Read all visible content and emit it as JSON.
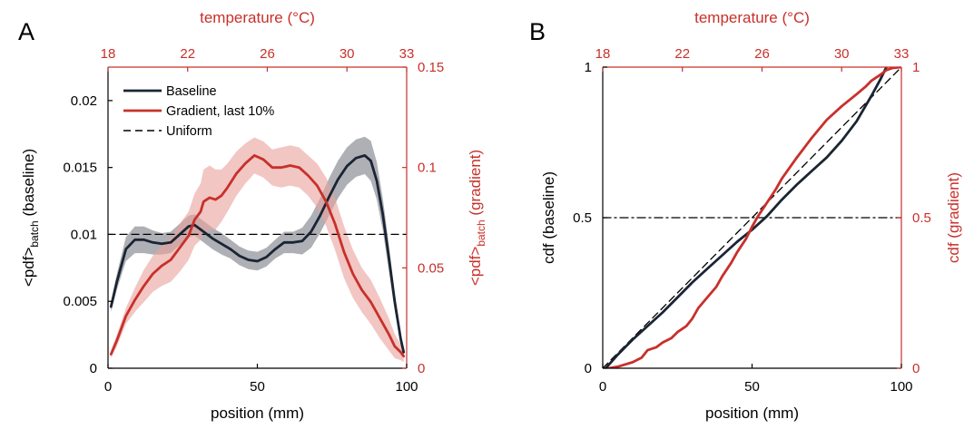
{
  "colors": {
    "baseline": "#1b2433",
    "gradient": "#c8302a",
    "baseline_band": "#8c8f95",
    "gradient_band": "#e8a39e",
    "axis_black": "#000000",
    "axis_red": "#c8302a"
  },
  "chart_data": [
    {
      "panel": "A",
      "type": "line",
      "xlabel": "position (mm)",
      "top_xlabel": "temperature (°C)",
      "ylabel_left": {
        "base": "<pdf>",
        "sub": "batch",
        "tail": " (baseline)"
      },
      "ylabel_right": {
        "base": "<pdf>",
        "sub": "batch",
        "tail": " (gradient)"
      },
      "xlim": [
        0,
        100
      ],
      "ylim_left": [
        0,
        0.0225
      ],
      "ylim_right": [
        0,
        0.15
      ],
      "x_ticks": [
        {
          "value": 0,
          "label": "0"
        },
        {
          "value": 50,
          "label": "50"
        },
        {
          "value": 100,
          "label": "100"
        }
      ],
      "top_ticks": [
        {
          "value": 18,
          "label": "18"
        },
        {
          "value": 22,
          "label": "22"
        },
        {
          "value": 26,
          "label": "26"
        },
        {
          "value": 30,
          "label": "30"
        },
        {
          "value": 33,
          "label": "33"
        }
      ],
      "top_range": [
        18,
        33
      ],
      "y_ticks_left": [
        {
          "value": 0,
          "label": "0"
        },
        {
          "value": 0.005,
          "label": "0.005"
        },
        {
          "value": 0.01,
          "label": "0.01"
        },
        {
          "value": 0.015,
          "label": "0.015"
        },
        {
          "value": 0.02,
          "label": "0.02"
        }
      ],
      "y_ticks_right": [
        {
          "value": 0,
          "label": "0"
        },
        {
          "value": 0.05,
          "label": "0.05"
        },
        {
          "value": 0.1,
          "label": "0.1"
        },
        {
          "value": 0.15,
          "label": "0.15"
        }
      ],
      "legend": {
        "placement": "top-left",
        "entries": [
          {
            "label": "Baseline",
            "series": "baseline"
          },
          {
            "label": "Gradient, last 10%",
            "series": "gradient"
          },
          {
            "label": "Uniform",
            "series": "uniform"
          }
        ]
      },
      "series": [
        {
          "id": "baseline",
          "name": "Baseline",
          "axis": "left",
          "style": "solid",
          "x": [
            1,
            3,
            6,
            9,
            12,
            15,
            18,
            21,
            24,
            27,
            29,
            32,
            35,
            38,
            41,
            44,
            47,
            50,
            53,
            56,
            59,
            62,
            65,
            68,
            71,
            74,
            77,
            80,
            83,
            86,
            88,
            90,
            92,
            94,
            96,
            98,
            99
          ],
          "y": [
            0.0046,
            0.0065,
            0.0089,
            0.0096,
            0.0096,
            0.0094,
            0.0093,
            0.0094,
            0.01,
            0.0106,
            0.0107,
            0.0102,
            0.0097,
            0.0093,
            0.0089,
            0.0084,
            0.0081,
            0.008,
            0.0083,
            0.0089,
            0.0094,
            0.0094,
            0.0095,
            0.0102,
            0.0114,
            0.0128,
            0.0141,
            0.0151,
            0.0157,
            0.0159,
            0.0155,
            0.014,
            0.0115,
            0.0083,
            0.005,
            0.0022,
            0.0012
          ],
          "band": [
            0.0004,
            0.0006,
            0.0009,
            0.001,
            0.001,
            0.0009,
            0.0008,
            0.0008,
            0.0008,
            0.0008,
            0.0008,
            0.0008,
            0.0008,
            0.0008,
            0.0007,
            0.0007,
            0.0007,
            0.0007,
            0.0007,
            0.0007,
            0.0008,
            0.0008,
            0.001,
            0.0012,
            0.0013,
            0.0014,
            0.0014,
            0.0014,
            0.0014,
            0.0014,
            0.0015,
            0.0014,
            0.0012,
            0.001,
            0.0007,
            0.0004,
            0.0003
          ]
        },
        {
          "id": "gradient",
          "name": "Gradient, last 10%",
          "axis": "right",
          "style": "solid",
          "x": [
            1,
            3,
            6,
            9,
            12,
            15,
            18,
            21,
            24,
            27,
            29,
            31,
            32,
            34,
            36,
            38,
            40,
            43,
            46,
            49,
            52,
            55,
            58,
            61,
            64,
            67,
            70,
            73,
            76,
            79,
            82,
            85,
            88,
            91,
            94,
            96,
            98,
            99
          ],
          "y": [
            0.007,
            0.014,
            0.026,
            0.034,
            0.041,
            0.047,
            0.051,
            0.054,
            0.06,
            0.066,
            0.074,
            0.078,
            0.083,
            0.085,
            0.084,
            0.086,
            0.09,
            0.097,
            0.102,
            0.106,
            0.104,
            0.1,
            0.1,
            0.101,
            0.1,
            0.096,
            0.091,
            0.083,
            0.072,
            0.058,
            0.047,
            0.039,
            0.033,
            0.025,
            0.017,
            0.011,
            0.008,
            0.006
          ],
          "band": [
            0.002,
            0.003,
            0.004,
            0.006,
            0.008,
            0.009,
            0.01,
            0.011,
            0.012,
            0.012,
            0.013,
            0.014,
            0.016,
            0.016,
            0.015,
            0.013,
            0.012,
            0.011,
            0.01,
            0.009,
            0.009,
            0.009,
            0.01,
            0.01,
            0.01,
            0.01,
            0.011,
            0.012,
            0.013,
            0.013,
            0.012,
            0.011,
            0.011,
            0.01,
            0.008,
            0.006,
            0.004,
            0.003
          ]
        },
        {
          "id": "uniform",
          "name": "Uniform",
          "axis": "left",
          "style": "dashed",
          "x": [
            0,
            100
          ],
          "y": [
            0.01,
            0.01
          ]
        }
      ]
    },
    {
      "panel": "B",
      "type": "line",
      "xlabel": "position (mm)",
      "top_xlabel": "temperature (°C)",
      "ylabel_left": "cdf  (baseline)",
      "ylabel_right": "cdf (gradient)",
      "xlim": [
        0,
        100
      ],
      "ylim_left": [
        0,
        1
      ],
      "ylim_right": [
        0,
        1
      ],
      "x_ticks": [
        {
          "value": 0,
          "label": "0"
        },
        {
          "value": 50,
          "label": "50"
        },
        {
          "value": 100,
          "label": "100"
        }
      ],
      "top_ticks": [
        {
          "value": 18,
          "label": "18"
        },
        {
          "value": 22,
          "label": "22"
        },
        {
          "value": 26,
          "label": "26"
        },
        {
          "value": 30,
          "label": "30"
        },
        {
          "value": 33,
          "label": "33"
        }
      ],
      "top_range": [
        18,
        33
      ],
      "y_ticks_left": [
        {
          "value": 0,
          "label": "0"
        },
        {
          "value": 0.5,
          "label": "0.5"
        },
        {
          "value": 1,
          "label": "1"
        }
      ],
      "y_ticks_right": [
        {
          "value": 0,
          "label": "0"
        },
        {
          "value": 0.5,
          "label": "0.5"
        },
        {
          "value": 1,
          "label": "1"
        }
      ],
      "series": [
        {
          "id": "baseline",
          "name": "Baseline",
          "axis": "left",
          "style": "solid",
          "x": [
            1,
            5,
            10,
            15,
            20,
            25,
            30,
            35,
            40,
            45,
            50,
            55,
            60,
            65,
            70,
            75,
            80,
            85,
            90,
            93,
            95
          ],
          "y": [
            0.0,
            0.045,
            0.095,
            0.14,
            0.185,
            0.235,
            0.285,
            0.33,
            0.375,
            0.42,
            0.46,
            0.505,
            0.56,
            0.61,
            0.655,
            0.7,
            0.755,
            0.82,
            0.905,
            0.96,
            1.0
          ]
        },
        {
          "id": "gradient",
          "name": "Gradient, last 10%",
          "axis": "right",
          "style": "solid",
          "x": [
            2,
            5,
            10,
            13,
            15,
            18,
            20,
            23,
            25,
            28,
            30,
            32,
            35,
            38,
            40,
            43,
            45,
            48,
            50,
            52,
            55,
            58,
            60,
            65,
            70,
            75,
            80,
            85,
            88,
            90,
            93,
            95,
            97,
            100
          ],
          "y": [
            0.0,
            0.005,
            0.02,
            0.035,
            0.06,
            0.07,
            0.085,
            0.1,
            0.12,
            0.14,
            0.165,
            0.2,
            0.235,
            0.27,
            0.305,
            0.35,
            0.385,
            0.43,
            0.47,
            0.505,
            0.55,
            0.595,
            0.63,
            0.7,
            0.765,
            0.825,
            0.87,
            0.91,
            0.935,
            0.955,
            0.975,
            0.99,
            0.997,
            1.0
          ]
        },
        {
          "id": "diagonal",
          "name": "",
          "axis": "left",
          "style": "dashed",
          "x": [
            0,
            100
          ],
          "y": [
            0,
            1
          ]
        },
        {
          "id": "half",
          "name": "",
          "axis": "left",
          "style": "dashdot",
          "x": [
            0,
            100
          ],
          "y": [
            0.5,
            0.5
          ]
        }
      ]
    }
  ]
}
